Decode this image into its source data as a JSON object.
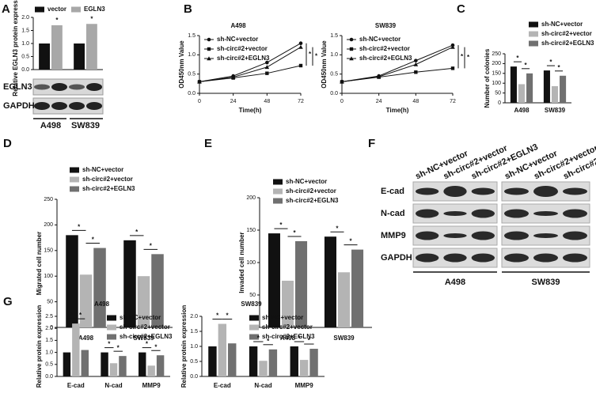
{
  "panel_letters": [
    "A",
    "B",
    "C",
    "D",
    "E",
    "F",
    "G"
  ],
  "blot_A": {
    "rows": [
      "EGLN3",
      "GAPDH"
    ]
  },
  "blot_F": {
    "lanes": [
      "sh-NC+vector",
      "sh-circ#2+vector",
      "sh-circ#2+EGLN3"
    ],
    "rows": [
      "E-cad",
      "N-cad",
      "MMP9",
      "GAPDH"
    ],
    "groups": [
      "A498",
      "SW839"
    ]
  },
  "chart_data": [
    {
      "type": "bar",
      "ylabel": "Relative EGLN3 protein expression",
      "annotation": "*",
      "categories": [
        "A498",
        "SW839"
      ],
      "series": [
        {
          "name": "vector",
          "color": "#111111",
          "values": [
            1.0,
            1.0
          ]
        },
        {
          "name": "EGLN3",
          "color": "#a8a8a8",
          "values": [
            1.7,
            1.75
          ]
        }
      ],
      "ylim": [
        0,
        2
      ],
      "yticks": [
        {
          "value": 0,
          "label": "0.0"
        },
        0.5,
        {
          "value": 1,
          "label": "1.0"
        },
        1.5,
        {
          "value": 2,
          "label": "2.0"
        }
      ]
    },
    {
      "type": "line",
      "title": "A498",
      "ylabel": "OD450nm Value",
      "xlabel": "Time(h)",
      "annotation": "*",
      "x": [
        0,
        24,
        48,
        72
      ],
      "series": [
        {
          "name": "sh-NC+vector",
          "color": "#111111",
          "marker": "circle",
          "values": [
            0.3,
            0.45,
            0.8,
            1.3
          ]
        },
        {
          "name": "sh-circ#2+vector",
          "color": "#111111",
          "marker": "square",
          "values": [
            0.3,
            0.4,
            0.52,
            0.72
          ]
        },
        {
          "name": "sh-circ#2+EGLN3",
          "color": "#111111",
          "marker": "triangle",
          "values": [
            0.3,
            0.42,
            0.68,
            1.2
          ]
        }
      ],
      "xlim": [
        0,
        72
      ],
      "xticks": [
        0,
        24,
        48,
        72
      ],
      "ylim": [
        0,
        1.5
      ],
      "yticks": [
        {
          "value": 0,
          "label": "0.0"
        },
        0.5,
        {
          "value": 1,
          "label": "1.0"
        },
        1.5
      ]
    },
    {
      "type": "line",
      "title": "SW839",
      "ylabel": "OD450nm Value",
      "xlabel": "Time(h)",
      "annotation": "*",
      "x": [
        0,
        24,
        48,
        72
      ],
      "series": [
        {
          "name": "sh-NC+vector",
          "color": "#111111",
          "marker": "circle",
          "values": [
            0.3,
            0.45,
            0.85,
            1.25
          ]
        },
        {
          "name": "sh-circ#2+vector",
          "color": "#111111",
          "marker": "square",
          "values": [
            0.3,
            0.42,
            0.55,
            0.65
          ]
        },
        {
          "name": "sh-circ#2+EGLN3",
          "color": "#111111",
          "marker": "triangle",
          "values": [
            0.3,
            0.43,
            0.75,
            1.2
          ]
        }
      ],
      "xlim": [
        0,
        72
      ],
      "xticks": [
        0,
        24,
        48,
        72
      ],
      "ylim": [
        0,
        1.5
      ],
      "yticks": [
        {
          "value": 0,
          "label": "0.0"
        },
        0.5,
        {
          "value": 1,
          "label": "1.0"
        },
        1.5
      ]
    },
    {
      "type": "bar",
      "ylabel": "Number of colonies",
      "annotation": "*",
      "categories": [
        "A498",
        "SW839"
      ],
      "series": [
        {
          "name": "sh-NC+vector",
          "color": "#111111",
          "values": [
            185,
            165
          ]
        },
        {
          "name": "sh-circ#2+vector",
          "color": "#b4b4b4",
          "values": [
            95,
            85
          ]
        },
        {
          "name": "sh-circ#2+EGLN3",
          "color": "#707070",
          "values": [
            150,
            138
          ]
        }
      ],
      "ylim": [
        0,
        250
      ],
      "yticks": [
        0,
        50,
        100,
        150,
        200,
        250
      ]
    },
    {
      "type": "bar",
      "ylabel": "Migrated cell number",
      "annotation": "*",
      "categories": [
        "A498",
        "SW839"
      ],
      "series": [
        {
          "name": "sh-NC+vector",
          "color": "#111111",
          "values": [
            180,
            170
          ]
        },
        {
          "name": "sh-circ#2+vector",
          "color": "#b4b4b4",
          "values": [
            103,
            100
          ]
        },
        {
          "name": "sh-circ#2+EGLN3",
          "color": "#707070",
          "values": [
            155,
            143
          ]
        }
      ],
      "ylim": [
        0,
        250
      ],
      "yticks": [
        0,
        50,
        100,
        150,
        200,
        250
      ]
    },
    {
      "type": "bar",
      "ylabel": "Invaded cell number",
      "annotation": "*",
      "categories": [
        "A498",
        "SW839"
      ],
      "series": [
        {
          "name": "sh-NC+vector",
          "color": "#111111",
          "values": [
            145,
            140
          ]
        },
        {
          "name": "sh-circ#2+vector",
          "color": "#b4b4b4",
          "values": [
            72,
            85
          ]
        },
        {
          "name": "sh-circ#2+EGLN3",
          "color": "#707070",
          "values": [
            133,
            120
          ]
        }
      ],
      "ylim": [
        0,
        200
      ],
      "yticks": [
        0,
        50,
        100,
        150,
        200
      ]
    },
    {
      "type": "bar",
      "title": "A498",
      "ylabel": "Relative protein expression",
      "annotation": "*",
      "categories": [
        "E-cad",
        "N-cad",
        "MMP9"
      ],
      "series": [
        {
          "name": "sh-NC+vector",
          "color": "#111111",
          "values": [
            1.0,
            1.0,
            1.0
          ]
        },
        {
          "name": "sh-circ#2+vector",
          "color": "#b4b4b4",
          "values": [
            2.2,
            0.55,
            0.45
          ]
        },
        {
          "name": "sh-circ#2+EGLN3",
          "color": "#707070",
          "values": [
            1.1,
            0.85,
            0.88
          ]
        }
      ],
      "ylim": [
        0,
        2.5
      ],
      "yticks": [
        {
          "value": 0,
          "label": "0.0"
        },
        0.5,
        {
          "value": 1,
          "label": "1.0"
        },
        1.5,
        {
          "value": 2,
          "label": "2.0"
        },
        2.5
      ]
    },
    {
      "type": "bar",
      "title": "SW839",
      "ylabel": "Relative protein expression",
      "annotation": "*",
      "categories": [
        "E-cad",
        "N-cad",
        "MMP9"
      ],
      "series": [
        {
          "name": "sh-NC+vector",
          "color": "#111111",
          "values": [
            1.0,
            1.0,
            1.0
          ]
        },
        {
          "name": "sh-circ#2+vector",
          "color": "#b4b4b4",
          "values": [
            1.75,
            0.52,
            0.55
          ]
        },
        {
          "name": "sh-circ#2+EGLN3",
          "color": "#707070",
          "values": [
            1.1,
            0.9,
            0.92
          ]
        }
      ],
      "ylim": [
        0,
        2
      ],
      "yticks": [
        {
          "value": 0,
          "label": "0.0"
        },
        0.5,
        {
          "value": 1,
          "label": "1.0"
        },
        1.5,
        {
          "value": 2,
          "label": "2.0"
        }
      ]
    }
  ]
}
